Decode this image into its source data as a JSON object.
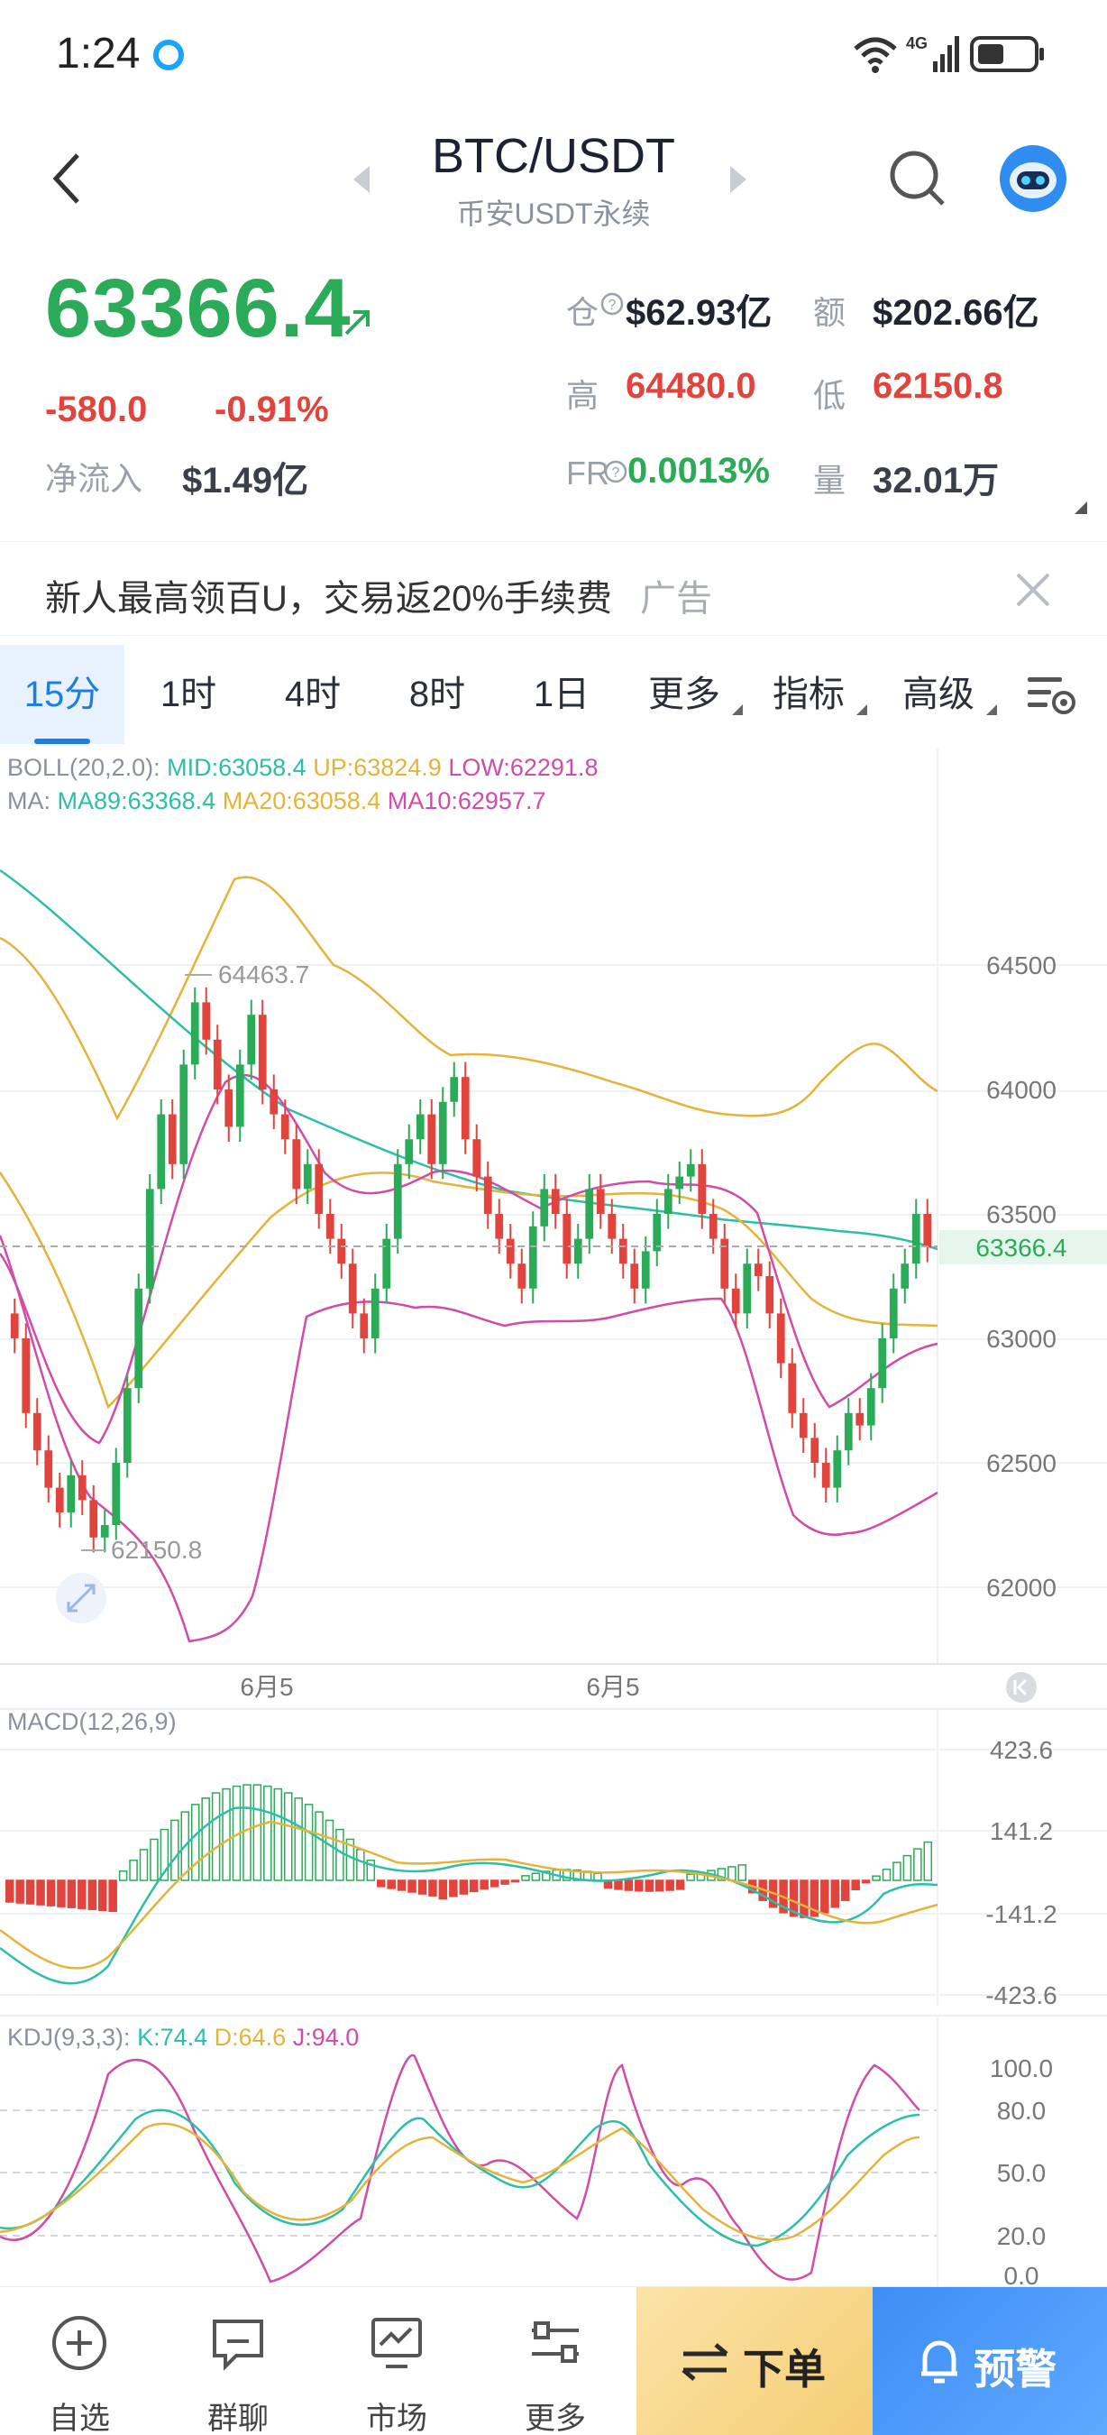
{
  "status": {
    "time": "1:24",
    "network": "4G"
  },
  "header": {
    "pair": "BTC/USDT",
    "subtitle": "币安USDT永续"
  },
  "ticker": {
    "price": "63366.4",
    "change": "-580.0",
    "change_pct": "-0.91%",
    "netflow_label": "净流入",
    "netflow_value": "$1.49亿",
    "oi_label": "仓",
    "oi_value": "$62.93亿",
    "amount_label": "额",
    "amount_value": "$202.66亿",
    "high_label": "高",
    "high_value": "64480.0",
    "low_label": "低",
    "low_value": "62150.8",
    "fr_label": "FR",
    "fr_value": "0.0013%",
    "volume_label": "量",
    "volume_value": "32.01万"
  },
  "ad": {
    "text": "新人最高领百U，交易返20%手续费",
    "tag": "广告"
  },
  "tabs": [
    {
      "label": "15分",
      "active": true
    },
    {
      "label": "1时"
    },
    {
      "label": "4时"
    },
    {
      "label": "8时"
    },
    {
      "label": "1日"
    },
    {
      "label": "更多"
    },
    {
      "label": "指标"
    },
    {
      "label": "高级"
    }
  ],
  "indicators": {
    "boll_name": "BOLL(20,2.0):",
    "boll_mid": "MID:63058.4",
    "boll_up": "UP:63824.9",
    "boll_low": "LOW:62291.8",
    "ma_name": "MA:",
    "ma89": "MA89:63368.4",
    "ma20": "MA20:63058.4",
    "ma10": "MA10:62957.7",
    "macd_name": "MACD(12,26,9)",
    "kdj_name": "KDJ(9,3,3):",
    "kdj_k": "K:74.4",
    "kdj_d": "D:64.6",
    "kdj_j": "J:94.0"
  },
  "price_axis": [
    "64500",
    "64000",
    "63500",
    "63000",
    "62500",
    "62000"
  ],
  "current_price_tag": "63366.4",
  "annotations": {
    "high": "64463.7",
    "low": "62150.8"
  },
  "date_labels": [
    "6月5",
    "6月5"
  ],
  "macd_axis": [
    "423.6",
    "141.2",
    "-141.2",
    "-423.6"
  ],
  "kdj_axis": [
    "100.0",
    "80.0",
    "50.0",
    "20.0",
    "0.0"
  ],
  "colors": {
    "up": "#2bab58",
    "down": "#e0443d",
    "accent": "#1e7de0",
    "ma89": "#2bbfa8",
    "mid": "#e4b43a",
    "ma10": "#d04ca8"
  },
  "bottom_nav": {
    "watchlist": "自选",
    "chat": "群聊",
    "market": "市场",
    "more": "更多",
    "order": "下单",
    "alert": "预警"
  }
}
